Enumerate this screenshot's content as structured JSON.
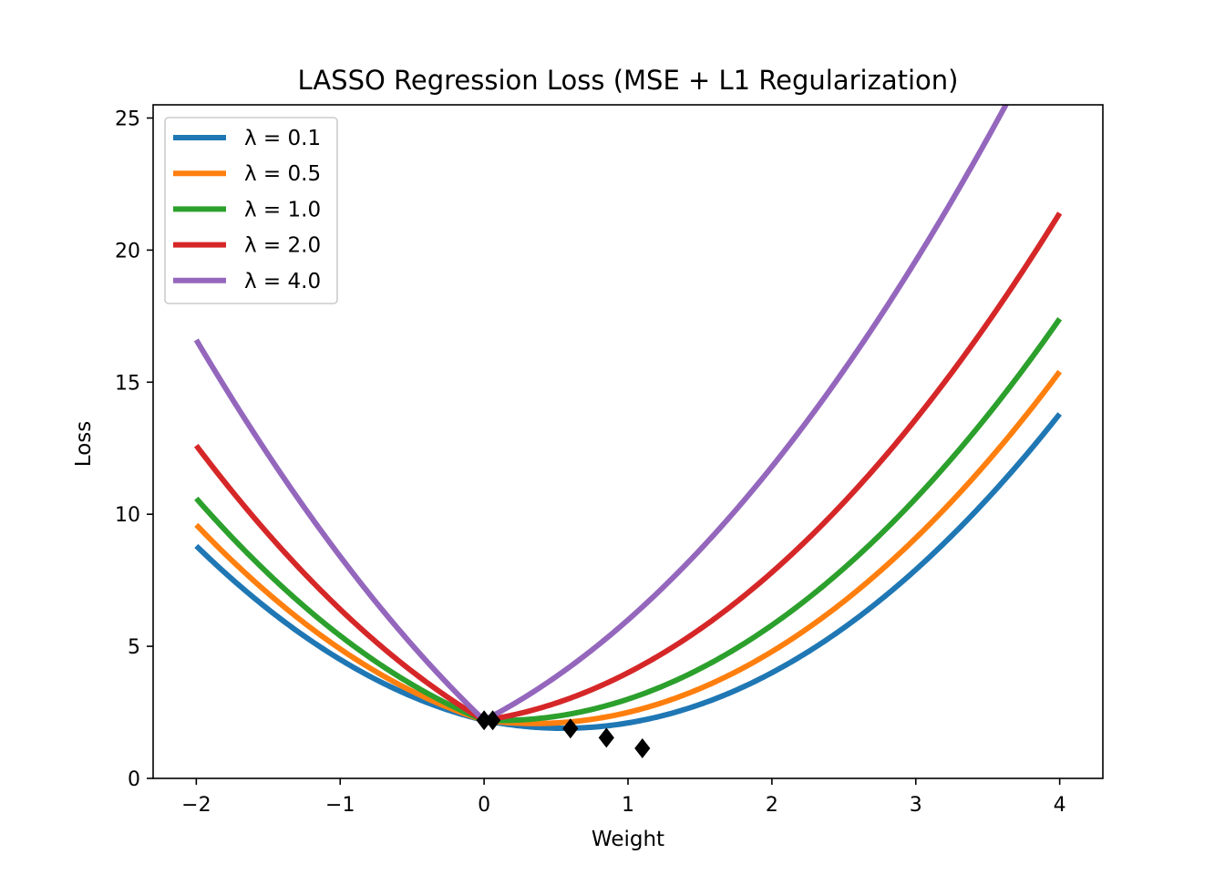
{
  "chart_data": {
    "type": "line",
    "title": "LASSO Regression Loss (MSE + L1 Regularization)",
    "xlabel": "Weight",
    "ylabel": "Loss",
    "xlim": [
      -2.3,
      4.3
    ],
    "ylim": [
      0,
      25.5
    ],
    "xticks": [
      -2,
      -1,
      0,
      1,
      2,
      3,
      4
    ],
    "xtick_labels": [
      "−2",
      "−1",
      "0",
      "1",
      "2",
      "3",
      "4"
    ],
    "yticks": [
      0,
      5,
      10,
      15,
      20,
      25
    ],
    "ytick_labels": [
      "0",
      "5",
      "10",
      "15",
      "20",
      "25"
    ],
    "grid": false,
    "legend_position": "top-left",
    "curve": {
      "a": 1.0,
      "b": 1.2,
      "c": 2.2,
      "x_start": -2,
      "x_end": 4
    },
    "series": [
      {
        "name": "λ = 0.1",
        "lambda": 0.1,
        "color": "#1f77b4",
        "minimum": {
          "x": 1.1,
          "y": 1.14
        }
      },
      {
        "name": "λ = 0.5",
        "lambda": 0.5,
        "color": "#ff7f0e",
        "minimum": {
          "x": 0.85,
          "y": 1.54
        }
      },
      {
        "name": "λ = 1.0",
        "lambda": 1.0,
        "color": "#2ca02c",
        "minimum": {
          "x": 0.6,
          "y": 1.89
        }
      },
      {
        "name": "λ = 2.0",
        "lambda": 2.0,
        "color": "#d62728",
        "minimum": {
          "x": 0.06,
          "y": 2.2
        }
      },
      {
        "name": "λ = 4.0",
        "lambda": 4.0,
        "color": "#9467bd",
        "minimum": {
          "x": 0.0,
          "y": 2.2
        }
      }
    ],
    "marker": {
      "shape": "diamond",
      "color": "#000000"
    }
  }
}
